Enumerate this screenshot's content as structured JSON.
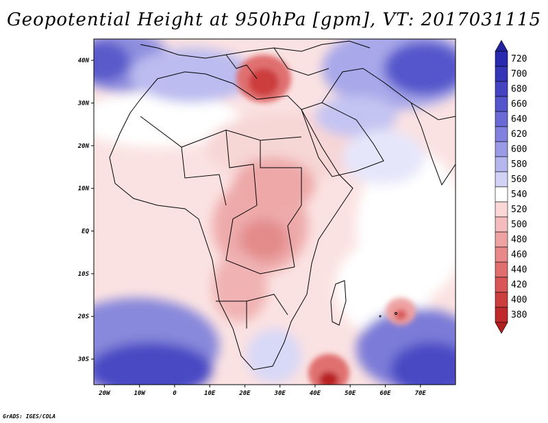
{
  "title": "Geopotential Height at 950hPa [gpm], VT: 2017031115",
  "credit": "GrADS: IGES/COLA",
  "map": {
    "lon_range": [
      -23,
      80
    ],
    "lat_range": [
      -36,
      45
    ],
    "x_ticks": [
      {
        "lon": -20,
        "label": "20W"
      },
      {
        "lon": -10,
        "label": "10W"
      },
      {
        "lon": 0,
        "label": "0"
      },
      {
        "lon": 10,
        "label": "10E"
      },
      {
        "lon": 20,
        "label": "20E"
      },
      {
        "lon": 30,
        "label": "30E"
      },
      {
        "lon": 40,
        "label": "40E"
      },
      {
        "lon": 50,
        "label": "50E"
      },
      {
        "lon": 60,
        "label": "60E"
      },
      {
        "lon": 70,
        "label": "70E"
      }
    ],
    "y_ticks": [
      {
        "lat": 40,
        "label": "40N"
      },
      {
        "lat": 30,
        "label": "30N"
      },
      {
        "lat": 20,
        "label": "20N"
      },
      {
        "lat": 10,
        "label": "10N"
      },
      {
        "lat": 0,
        "label": "EQ"
      },
      {
        "lat": -10,
        "label": "10S"
      },
      {
        "lat": -20,
        "label": "20S"
      },
      {
        "lat": -30,
        "label": "30S"
      }
    ]
  },
  "colorbar": {
    "levels": [
      {
        "value": "720",
        "color": "#2a2ab0"
      },
      {
        "value": "700",
        "color": "#3535b8"
      },
      {
        "value": "680",
        "color": "#4444c2"
      },
      {
        "value": "660",
        "color": "#5656cc"
      },
      {
        "value": "640",
        "color": "#6a6ad6"
      },
      {
        "value": "620",
        "color": "#8080de"
      },
      {
        "value": "600",
        "color": "#9a9ae6"
      },
      {
        "value": "580",
        "color": "#b6b6ee"
      },
      {
        "value": "560",
        "color": "#d2d2f6"
      },
      {
        "value": "540",
        "color": "#ffffff"
      },
      {
        "value": "520",
        "color": "#fad8d8"
      },
      {
        "value": "500",
        "color": "#f4bcbc"
      },
      {
        "value": "480",
        "color": "#eea2a2"
      },
      {
        "value": "460",
        "color": "#e88888"
      },
      {
        "value": "440",
        "color": "#e06e6e"
      },
      {
        "value": "420",
        "color": "#d85656"
      },
      {
        "value": "400",
        "color": "#cc3e3e"
      },
      {
        "value": "380",
        "color": "#c02a2a"
      }
    ],
    "top_triangle_color": "#22229e",
    "bottom_triangle_color": "#b01e1e"
  }
}
